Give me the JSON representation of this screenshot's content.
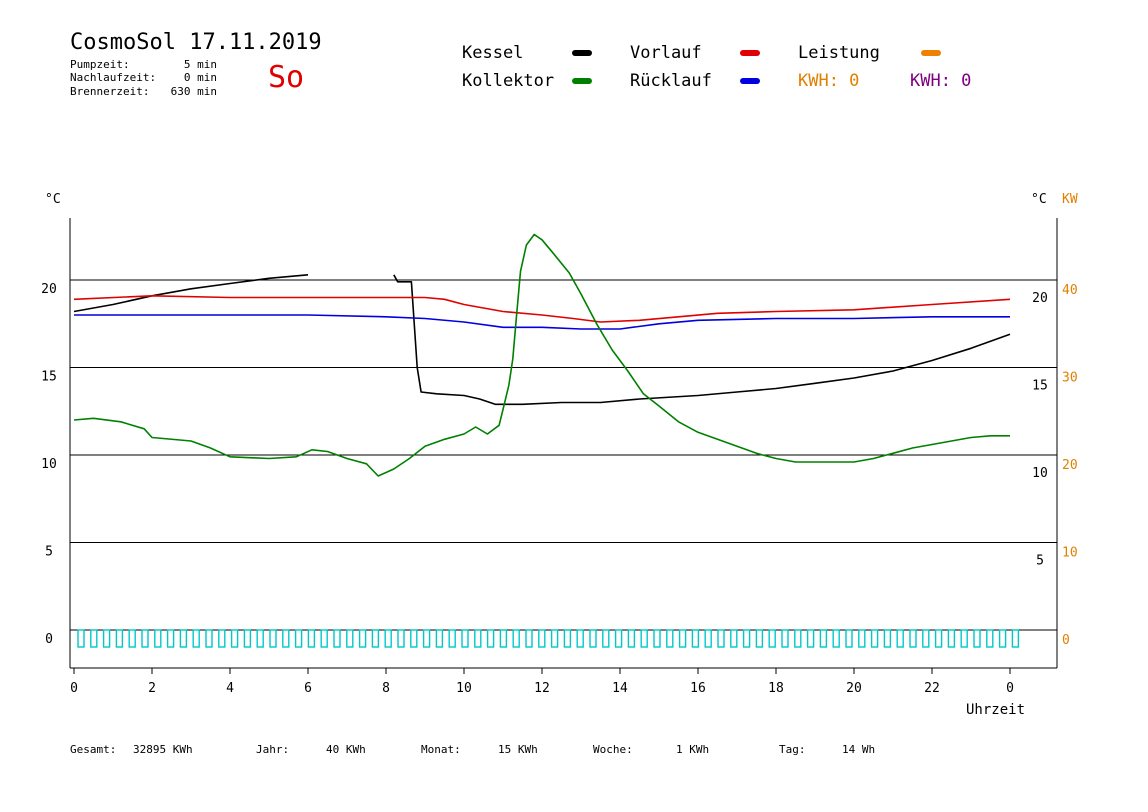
{
  "header": {
    "title": "CosmoSol 17.11.2019",
    "weekday": "So",
    "pumpzeit_label": "Pumpzeit:",
    "pumpzeit_value": "5 min",
    "nachlaufzeit_label": "Nachlaufzeit:",
    "nachlaufzeit_value": "0 min",
    "brennerzeit_label": "Brennerzeit:",
    "brennerzeit_value": "630 min"
  },
  "legend": {
    "kessel": "Kessel",
    "kollektor": "Kollektor",
    "vorlauf": "Vorlauf",
    "ruecklauf": "Rücklauf",
    "leistung": "Leistung",
    "kwh1": "KWH: 0",
    "kwh2": "KWH: 0"
  },
  "colors": {
    "kessel": "#000000",
    "kollektor": "#008000",
    "vorlauf": "#e00000",
    "ruecklauf": "#0000e0",
    "leistung": "#f08000",
    "kwh1": "#e08000",
    "kwh2": "#800080",
    "pump": "#00c8c8",
    "axis_right": "#e08000"
  },
  "footer": {
    "gesamt_label": "Gesamt:",
    "gesamt_value": "32895 KWh",
    "jahr_label": "Jahr:",
    "jahr_value": "40 KWh",
    "monat_label": "Monat:",
    "monat_value": "15 KWh",
    "woche_label": "Woche:",
    "woche_value": "1 KWh",
    "tag_label": "Tag:",
    "tag_value": "14 Wh"
  },
  "chart_data": {
    "type": "line",
    "xlabel": "Uhrzeit",
    "ylabel_left": "°C",
    "ylabel_right_c": "°C",
    "ylabel_right_kw": "KW",
    "x_ticks": [
      "0",
      "2",
      "4",
      "6",
      "8",
      "10",
      "12",
      "14",
      "16",
      "18",
      "20",
      "22",
      "0"
    ],
    "y_left_ticks": [
      "0",
      "5",
      "10",
      "15",
      "20"
    ],
    "y_right_c_ticks": [
      "5",
      "10",
      "15",
      "20"
    ],
    "y_right_kw_ticks": [
      "0",
      "10",
      "20",
      "30",
      "40"
    ],
    "xlim": [
      0,
      24
    ],
    "ylim": [
      -2,
      23.5
    ],
    "grid_y": [
      0,
      5,
      10,
      15,
      20
    ],
    "series": [
      {
        "name": "Kessel",
        "color_key": "kessel",
        "points": [
          [
            0,
            18.2
          ],
          [
            1,
            18.6
          ],
          [
            2,
            19.1
          ],
          [
            3,
            19.5
          ],
          [
            4,
            19.8
          ],
          [
            5,
            20.1
          ],
          [
            6,
            20.3
          ],
          [
            6.05,
            null
          ],
          [
            8.2,
            20.3
          ],
          [
            8.3,
            19.9
          ],
          [
            8.65,
            19.9
          ],
          [
            8.8,
            15.0
          ],
          [
            8.9,
            13.6
          ],
          [
            9.3,
            13.5
          ],
          [
            10,
            13.4
          ],
          [
            10.4,
            13.2
          ],
          [
            10.8,
            12.9
          ],
          [
            11.5,
            12.9
          ],
          [
            12.5,
            13.0
          ],
          [
            13.5,
            13.0
          ],
          [
            14.5,
            13.2
          ],
          [
            16,
            13.4
          ],
          [
            17,
            13.6
          ],
          [
            18,
            13.8
          ],
          [
            19,
            14.1
          ],
          [
            20,
            14.4
          ],
          [
            21,
            14.8
          ],
          [
            22,
            15.4
          ],
          [
            23,
            16.1
          ],
          [
            24,
            16.9
          ]
        ]
      },
      {
        "name": "Vorlauf",
        "color_key": "vorlauf",
        "points": [
          [
            0,
            18.9
          ],
          [
            2,
            19.1
          ],
          [
            4,
            19.0
          ],
          [
            6,
            19.0
          ],
          [
            8,
            19.0
          ],
          [
            9,
            19.0
          ],
          [
            9.5,
            18.9
          ],
          [
            10,
            18.6
          ],
          [
            11,
            18.2
          ],
          [
            12,
            18.0
          ],
          [
            12.8,
            17.8
          ],
          [
            13.5,
            17.6
          ],
          [
            14.5,
            17.7
          ],
          [
            15.5,
            17.9
          ],
          [
            16.5,
            18.1
          ],
          [
            18,
            18.2
          ],
          [
            20,
            18.3
          ],
          [
            22,
            18.6
          ],
          [
            24,
            18.9
          ]
        ]
      },
      {
        "name": "Rücklauf",
        "color_key": "ruecklauf",
        "points": [
          [
            0,
            18.0
          ],
          [
            2,
            18.0
          ],
          [
            4,
            18.0
          ],
          [
            6,
            18.0
          ],
          [
            8,
            17.9
          ],
          [
            9,
            17.8
          ],
          [
            10,
            17.6
          ],
          [
            11,
            17.3
          ],
          [
            12,
            17.3
          ],
          [
            13,
            17.2
          ],
          [
            14,
            17.2
          ],
          [
            15,
            17.5
          ],
          [
            16,
            17.7
          ],
          [
            18,
            17.8
          ],
          [
            20,
            17.8
          ],
          [
            22,
            17.9
          ],
          [
            24,
            17.9
          ]
        ]
      },
      {
        "name": "Kollektor",
        "color_key": "kollektor",
        "points": [
          [
            0,
            12.0
          ],
          [
            0.5,
            12.1
          ],
          [
            1.2,
            11.9
          ],
          [
            1.8,
            11.5
          ],
          [
            2,
            11.0
          ],
          [
            3,
            10.8
          ],
          [
            3.5,
            10.4
          ],
          [
            4,
            9.9
          ],
          [
            5,
            9.8
          ],
          [
            5.7,
            9.9
          ],
          [
            6.1,
            10.3
          ],
          [
            6.5,
            10.2
          ],
          [
            7,
            9.8
          ],
          [
            7.5,
            9.5
          ],
          [
            7.8,
            8.8
          ],
          [
            8.2,
            9.2
          ],
          [
            8.6,
            9.8
          ],
          [
            9,
            10.5
          ],
          [
            9.5,
            10.9
          ],
          [
            10,
            11.2
          ],
          [
            10.3,
            11.6
          ],
          [
            10.6,
            11.2
          ],
          [
            10.9,
            11.7
          ],
          [
            11.0,
            12.6
          ],
          [
            11.15,
            14.0
          ],
          [
            11.25,
            15.5
          ],
          [
            11.35,
            18.0
          ],
          [
            11.45,
            20.5
          ],
          [
            11.6,
            22.0
          ],
          [
            11.8,
            22.6
          ],
          [
            12.0,
            22.3
          ],
          [
            12.3,
            21.5
          ],
          [
            12.7,
            20.4
          ],
          [
            13.0,
            19.2
          ],
          [
            13.4,
            17.5
          ],
          [
            13.8,
            16.0
          ],
          [
            14.2,
            14.8
          ],
          [
            14.6,
            13.5
          ],
          [
            15,
            12.8
          ],
          [
            15.5,
            11.9
          ],
          [
            16,
            11.3
          ],
          [
            16.5,
            10.9
          ],
          [
            17,
            10.5
          ],
          [
            17.5,
            10.1
          ],
          [
            18,
            9.8
          ],
          [
            18.5,
            9.6
          ],
          [
            19,
            9.6
          ],
          [
            19.5,
            9.6
          ],
          [
            20,
            9.6
          ],
          [
            20.5,
            9.8
          ],
          [
            21,
            10.1
          ],
          [
            21.5,
            10.4
          ],
          [
            22,
            10.6
          ],
          [
            22.5,
            10.8
          ],
          [
            23,
            11.0
          ],
          [
            23.5,
            11.1
          ],
          [
            24,
            11.1
          ]
        ]
      }
    ]
  }
}
